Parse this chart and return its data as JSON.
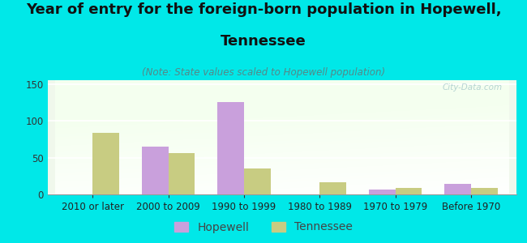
{
  "title_line1": "Year of entry for the foreign-born population in Hopewell,",
  "title_line2": "Tennessee",
  "subtitle": "(Note: State values scaled to Hopewell population)",
  "categories": [
    "2010 or later",
    "2000 to 2009",
    "1990 to 1999",
    "1980 to 1989",
    "1970 to 1979",
    "Before 1970"
  ],
  "hopewell_values": [
    0,
    65,
    125,
    0,
    7,
    14
  ],
  "tennessee_values": [
    84,
    56,
    35,
    17,
    9,
    9
  ],
  "hopewell_color": "#c9a0dc",
  "tennessee_color": "#c8cc82",
  "background_color": "#00e8e8",
  "bar_width": 0.35,
  "ylim": [
    0,
    155
  ],
  "yticks": [
    0,
    50,
    100,
    150
  ],
  "watermark": "City-Data.com",
  "title_fontsize": 13,
  "subtitle_fontsize": 8.5,
  "legend_fontsize": 10,
  "tick_fontsize": 8.5
}
